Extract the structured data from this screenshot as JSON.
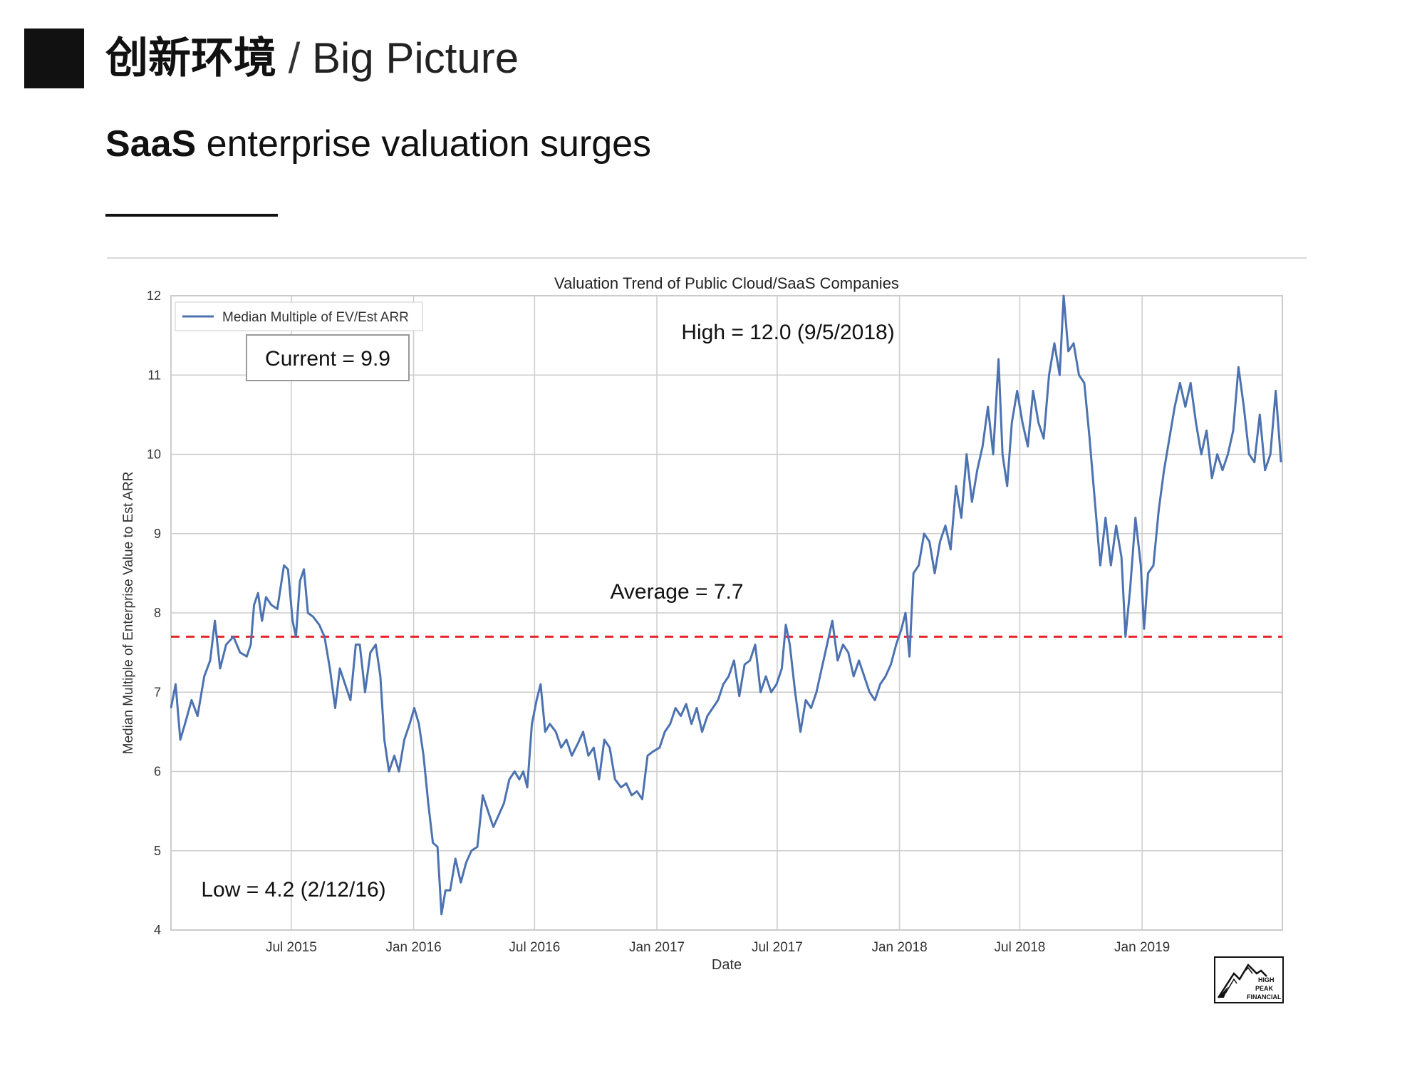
{
  "slide": {
    "title_cn": "创新环境",
    "title_sep": "/",
    "title_en": "Big Picture",
    "subtitle_bold": "SaaS",
    "subtitle_rest": "enterprise valuation surges"
  },
  "logo": {
    "line1": "HIGH",
    "line2": "PEAK",
    "line3": "FINANCIAL"
  },
  "colors": {
    "series": "#4C72B0",
    "average_line": "#e8262b",
    "grid": "#cccccc",
    "axis_text": "#333333"
  },
  "chart_data": {
    "type": "line",
    "title": "Valuation Trend of Public Cloud/SaaS Companies",
    "xlabel": "Date",
    "ylabel": "Median Multiple of Enterprise Value to Est ARR",
    "ylim": [
      4,
      12
    ],
    "xlim": [
      "2015-01-01",
      "2019-07-31"
    ],
    "y_ticks": [
      4,
      5,
      6,
      7,
      8,
      9,
      10,
      11,
      12
    ],
    "x_ticks": [
      {
        "date": "2015-07-01",
        "label": "Jul 2015"
      },
      {
        "date": "2016-01-01",
        "label": "Jan 2016"
      },
      {
        "date": "2016-07-01",
        "label": "Jul 2016"
      },
      {
        "date": "2017-01-01",
        "label": "Jan 2017"
      },
      {
        "date": "2017-07-01",
        "label": "Jul 2017"
      },
      {
        "date": "2018-01-01",
        "label": "Jan 2018"
      },
      {
        "date": "2018-07-01",
        "label": "Jul 2018"
      },
      {
        "date": "2019-01-01",
        "label": "Jan 2019"
      }
    ],
    "grid": true,
    "legend_position": "top-left",
    "series": [
      {
        "name": "Median Multiple of EV/Est ARR",
        "points": [
          [
            "2015-01-01",
            6.8
          ],
          [
            "2015-01-08",
            7.1
          ],
          [
            "2015-01-15",
            6.4
          ],
          [
            "2015-01-22",
            6.6
          ],
          [
            "2015-02-01",
            6.9
          ],
          [
            "2015-02-10",
            6.7
          ],
          [
            "2015-02-20",
            7.2
          ],
          [
            "2015-03-01",
            7.4
          ],
          [
            "2015-03-08",
            7.9
          ],
          [
            "2015-03-16",
            7.3
          ],
          [
            "2015-03-25",
            7.6
          ],
          [
            "2015-04-05",
            7.7
          ],
          [
            "2015-04-15",
            7.5
          ],
          [
            "2015-04-25",
            7.45
          ],
          [
            "2015-05-01",
            7.6
          ],
          [
            "2015-05-06",
            8.1
          ],
          [
            "2015-05-12",
            8.25
          ],
          [
            "2015-05-18",
            7.9
          ],
          [
            "2015-05-24",
            8.2
          ],
          [
            "2015-06-01",
            8.1
          ],
          [
            "2015-06-10",
            8.05
          ],
          [
            "2015-06-20",
            8.6
          ],
          [
            "2015-06-26",
            8.55
          ],
          [
            "2015-07-03",
            7.9
          ],
          [
            "2015-07-08",
            7.7
          ],
          [
            "2015-07-14",
            8.4
          ],
          [
            "2015-07-20",
            8.55
          ],
          [
            "2015-07-26",
            8.0
          ],
          [
            "2015-08-03",
            7.95
          ],
          [
            "2015-08-12",
            7.85
          ],
          [
            "2015-08-20",
            7.7
          ],
          [
            "2015-08-28",
            7.3
          ],
          [
            "2015-09-05",
            6.8
          ],
          [
            "2015-09-12",
            7.3
          ],
          [
            "2015-09-20",
            7.1
          ],
          [
            "2015-09-28",
            6.9
          ],
          [
            "2015-10-06",
            7.6
          ],
          [
            "2015-10-12",
            7.6
          ],
          [
            "2015-10-20",
            7.0
          ],
          [
            "2015-10-28",
            7.5
          ],
          [
            "2015-11-05",
            7.6
          ],
          [
            "2015-11-12",
            7.2
          ],
          [
            "2015-11-18",
            6.4
          ],
          [
            "2015-11-25",
            6.0
          ],
          [
            "2015-12-03",
            6.2
          ],
          [
            "2015-12-10",
            6.0
          ],
          [
            "2015-12-18",
            6.4
          ],
          [
            "2015-12-26",
            6.6
          ],
          [
            "2016-01-02",
            6.8
          ],
          [
            "2016-01-09",
            6.6
          ],
          [
            "2016-01-16",
            6.2
          ],
          [
            "2016-01-23",
            5.6
          ],
          [
            "2016-01-30",
            5.1
          ],
          [
            "2016-02-06",
            5.05
          ],
          [
            "2016-02-12",
            4.2
          ],
          [
            "2016-02-18",
            4.5
          ],
          [
            "2016-02-25",
            4.5
          ],
          [
            "2016-03-04",
            4.9
          ],
          [
            "2016-03-12",
            4.6
          ],
          [
            "2016-03-20",
            4.85
          ],
          [
            "2016-03-28",
            5.0
          ],
          [
            "2016-04-06",
            5.05
          ],
          [
            "2016-04-14",
            5.7
          ],
          [
            "2016-04-22",
            5.5
          ],
          [
            "2016-04-30",
            5.3
          ],
          [
            "2016-05-08",
            5.45
          ],
          [
            "2016-05-16",
            5.6
          ],
          [
            "2016-05-24",
            5.9
          ],
          [
            "2016-06-01",
            6.0
          ],
          [
            "2016-06-08",
            5.9
          ],
          [
            "2016-06-14",
            6.0
          ],
          [
            "2016-06-20",
            5.8
          ],
          [
            "2016-06-27",
            6.6
          ],
          [
            "2016-07-04",
            6.9
          ],
          [
            "2016-07-10",
            7.1
          ],
          [
            "2016-07-17",
            6.5
          ],
          [
            "2016-07-24",
            6.6
          ],
          [
            "2016-08-02",
            6.5
          ],
          [
            "2016-08-10",
            6.3
          ],
          [
            "2016-08-18",
            6.4
          ],
          [
            "2016-08-26",
            6.2
          ],
          [
            "2016-09-04",
            6.35
          ],
          [
            "2016-09-12",
            6.5
          ],
          [
            "2016-09-20",
            6.2
          ],
          [
            "2016-09-28",
            6.3
          ],
          [
            "2016-10-06",
            5.9
          ],
          [
            "2016-10-14",
            6.4
          ],
          [
            "2016-10-22",
            6.3
          ],
          [
            "2016-10-30",
            5.9
          ],
          [
            "2016-11-08",
            5.8
          ],
          [
            "2016-11-16",
            5.85
          ],
          [
            "2016-11-24",
            5.7
          ],
          [
            "2016-12-02",
            5.75
          ],
          [
            "2016-12-10",
            5.65
          ],
          [
            "2016-12-18",
            6.2
          ],
          [
            "2016-12-26",
            6.25
          ],
          [
            "2017-01-05",
            6.3
          ],
          [
            "2017-01-13",
            6.5
          ],
          [
            "2017-01-21",
            6.6
          ],
          [
            "2017-01-29",
            6.8
          ],
          [
            "2017-02-06",
            6.7
          ],
          [
            "2017-02-14",
            6.85
          ],
          [
            "2017-02-22",
            6.6
          ],
          [
            "2017-03-02",
            6.8
          ],
          [
            "2017-03-10",
            6.5
          ],
          [
            "2017-03-18",
            6.7
          ],
          [
            "2017-03-26",
            6.8
          ],
          [
            "2017-04-03",
            6.9
          ],
          [
            "2017-04-11",
            7.1
          ],
          [
            "2017-04-19",
            7.2
          ],
          [
            "2017-04-27",
            7.4
          ],
          [
            "2017-05-05",
            6.95
          ],
          [
            "2017-05-13",
            7.35
          ],
          [
            "2017-05-21",
            7.4
          ],
          [
            "2017-05-29",
            7.6
          ],
          [
            "2017-06-06",
            7.0
          ],
          [
            "2017-06-14",
            7.2
          ],
          [
            "2017-06-22",
            7.0
          ],
          [
            "2017-06-30",
            7.1
          ],
          [
            "2017-07-08",
            7.3
          ],
          [
            "2017-07-14",
            7.85
          ],
          [
            "2017-07-20",
            7.6
          ],
          [
            "2017-07-28",
            7.0
          ],
          [
            "2017-08-05",
            6.5
          ],
          [
            "2017-08-13",
            6.9
          ],
          [
            "2017-08-21",
            6.8
          ],
          [
            "2017-08-29",
            7.0
          ],
          [
            "2017-09-06",
            7.3
          ],
          [
            "2017-09-14",
            7.6
          ],
          [
            "2017-09-22",
            7.9
          ],
          [
            "2017-09-30",
            7.4
          ],
          [
            "2017-10-08",
            7.6
          ],
          [
            "2017-10-16",
            7.5
          ],
          [
            "2017-10-24",
            7.2
          ],
          [
            "2017-11-01",
            7.4
          ],
          [
            "2017-11-09",
            7.2
          ],
          [
            "2017-11-17",
            7.0
          ],
          [
            "2017-11-25",
            6.9
          ],
          [
            "2017-12-03",
            7.1
          ],
          [
            "2017-12-11",
            7.2
          ],
          [
            "2017-12-19",
            7.35
          ],
          [
            "2017-12-27",
            7.6
          ],
          [
            "2018-01-04",
            7.8
          ],
          [
            "2018-01-10",
            8.0
          ],
          [
            "2018-01-16",
            7.45
          ],
          [
            "2018-01-22",
            8.5
          ],
          [
            "2018-01-30",
            8.6
          ],
          [
            "2018-02-07",
            9.0
          ],
          [
            "2018-02-15",
            8.9
          ],
          [
            "2018-02-23",
            8.5
          ],
          [
            "2018-03-03",
            8.9
          ],
          [
            "2018-03-11",
            9.1
          ],
          [
            "2018-03-19",
            8.8
          ],
          [
            "2018-03-27",
            9.6
          ],
          [
            "2018-04-04",
            9.2
          ],
          [
            "2018-04-12",
            10.0
          ],
          [
            "2018-04-20",
            9.4
          ],
          [
            "2018-04-28",
            9.8
          ],
          [
            "2018-05-06",
            10.1
          ],
          [
            "2018-05-14",
            10.6
          ],
          [
            "2018-05-22",
            10.0
          ],
          [
            "2018-05-30",
            11.2
          ],
          [
            "2018-06-05",
            10.0
          ],
          [
            "2018-06-12",
            9.6
          ],
          [
            "2018-06-19",
            10.4
          ],
          [
            "2018-06-27",
            10.8
          ],
          [
            "2018-07-05",
            10.4
          ],
          [
            "2018-07-13",
            10.1
          ],
          [
            "2018-07-21",
            10.8
          ],
          [
            "2018-07-29",
            10.4
          ],
          [
            "2018-08-06",
            10.2
          ],
          [
            "2018-08-14",
            11.0
          ],
          [
            "2018-08-22",
            11.4
          ],
          [
            "2018-08-30",
            11.0
          ],
          [
            "2018-09-05",
            12.0
          ],
          [
            "2018-09-12",
            11.3
          ],
          [
            "2018-09-20",
            11.4
          ],
          [
            "2018-09-28",
            11.0
          ],
          [
            "2018-10-06",
            10.9
          ],
          [
            "2018-10-14",
            10.2
          ],
          [
            "2018-10-22",
            9.4
          ],
          [
            "2018-10-30",
            8.6
          ],
          [
            "2018-11-07",
            9.2
          ],
          [
            "2018-11-15",
            8.6
          ],
          [
            "2018-11-23",
            9.1
          ],
          [
            "2018-12-01",
            8.7
          ],
          [
            "2018-12-07",
            7.7
          ],
          [
            "2018-12-14",
            8.3
          ],
          [
            "2018-12-22",
            9.2
          ],
          [
            "2018-12-30",
            8.6
          ],
          [
            "2019-01-04",
            7.8
          ],
          [
            "2019-01-10",
            8.5
          ],
          [
            "2019-01-18",
            8.6
          ],
          [
            "2019-01-26",
            9.3
          ],
          [
            "2019-02-03",
            9.8
          ],
          [
            "2019-02-11",
            10.2
          ],
          [
            "2019-02-19",
            10.6
          ],
          [
            "2019-02-27",
            10.9
          ],
          [
            "2019-03-07",
            10.6
          ],
          [
            "2019-03-15",
            10.9
          ],
          [
            "2019-03-23",
            10.4
          ],
          [
            "2019-03-31",
            10.0
          ],
          [
            "2019-04-08",
            10.3
          ],
          [
            "2019-04-16",
            9.7
          ],
          [
            "2019-04-24",
            10.0
          ],
          [
            "2019-05-02",
            9.8
          ],
          [
            "2019-05-10",
            10.0
          ],
          [
            "2019-05-18",
            10.3
          ],
          [
            "2019-05-26",
            11.1
          ],
          [
            "2019-06-03",
            10.6
          ],
          [
            "2019-06-11",
            10.0
          ],
          [
            "2019-06-19",
            9.9
          ],
          [
            "2019-06-27",
            10.5
          ],
          [
            "2019-07-05",
            9.8
          ],
          [
            "2019-07-13",
            10.0
          ],
          [
            "2019-07-21",
            10.8
          ],
          [
            "2019-07-29",
            9.9
          ]
        ]
      }
    ],
    "reference_lines": [
      {
        "label": "Average = 7.7",
        "y": 7.7,
        "style": "dashed"
      }
    ],
    "annotations": {
      "current": "Current = 9.9",
      "high": "High = 12.0 (9/5/2018)",
      "average": "Average = 7.7",
      "low": "Low = 4.2 (2/12/16)"
    }
  }
}
